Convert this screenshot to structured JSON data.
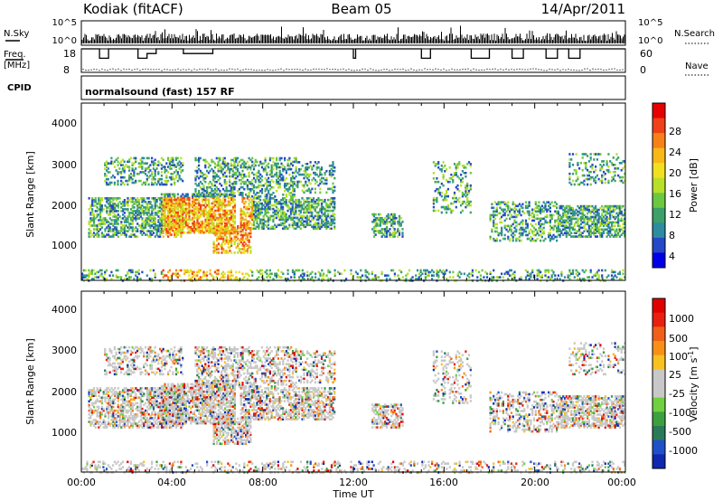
{
  "header": {
    "station": "Kodiak (fitACF)",
    "beam": "Beam 05",
    "date": "14/Apr/2011"
  },
  "top_panels": {
    "nsky_label": "N.Sky",
    "nsearch_label": "N.Search",
    "freq_label_1": "Freq.",
    "freq_label_2": "[MHz]",
    "nave_label": "Nave",
    "cpid_label": "CPID",
    "cpid_text": "normalsound (fast) 157 RF",
    "noise_ticks": [
      "10^5",
      "10^0"
    ],
    "noise_right_ticks": [
      "10^5",
      "10^0"
    ],
    "freq_ticks": [
      "18",
      "8"
    ],
    "nave_ticks": [
      "60",
      "0"
    ]
  },
  "chart_data": [
    {
      "type": "heatmap",
      "name": "power",
      "ylabel": "Slant Range [km]",
      "y_ticks": [
        "4000",
        "3000",
        "2000",
        "1000"
      ],
      "ylim": [
        180,
        4600
      ],
      "colorbar": {
        "label": "Power [dB]",
        "ticks": [
          "28",
          "24",
          "20",
          "16",
          "12",
          "8",
          "4"
        ],
        "colors": [
          "#0000e8",
          "#2448c8",
          "#2e8ca0",
          "#3da068",
          "#6cc840",
          "#b8e028",
          "#f0e020",
          "#f8b818",
          "#f88018",
          "#f04018",
          "#e80000"
        ],
        "range": [
          0,
          32
        ]
      }
    },
    {
      "type": "heatmap",
      "name": "velocity",
      "ylabel": "Slant Range [km]",
      "y_ticks": [
        "4000",
        "3000",
        "2000",
        "1000"
      ],
      "ylim": [
        180,
        4600
      ],
      "colorbar": {
        "label": "Velocity [m s",
        "label_sup": "-1",
        "label_end": "]",
        "ticks": [
          "1000",
          "500",
          "100",
          "25",
          "-25",
          "-100",
          "-500",
          "-1000"
        ],
        "colors": [
          "#1028b0",
          "#2050c8",
          "#2a7a5a",
          "#3ca040",
          "#70d040",
          "#c8c8c8",
          "#c8c8c8",
          "#f8c020",
          "#f89018",
          "#f06018",
          "#e82010",
          "#e00000"
        ]
      }
    }
  ],
  "time_axis": {
    "label": "Time UT",
    "ticks": [
      "00:00",
      "04:00",
      "08:00",
      "12:00",
      "16:00",
      "20:00",
      "00:00"
    ]
  }
}
